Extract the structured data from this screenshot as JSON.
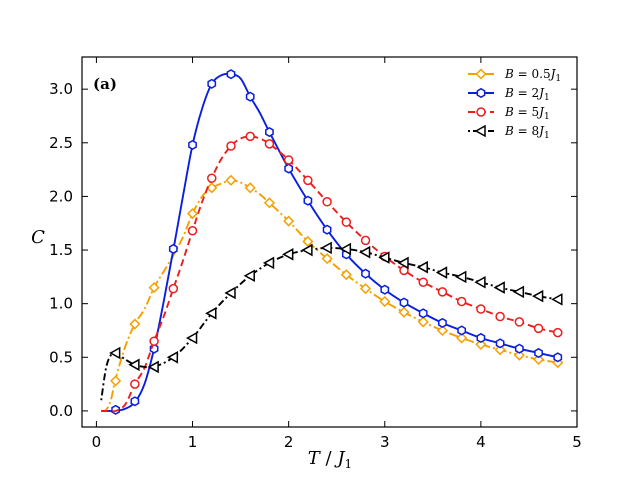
{
  "chart_data": {
    "type": "line",
    "panel_label": "(a)",
    "xlabel_main": "T",
    "xlabel_sep": " / ",
    "xlabel_sym": "J",
    "xlabel_sub": "1",
    "ylabel": "C",
    "xlim": [
      -0.15,
      5.0
    ],
    "ylim": [
      -0.15,
      3.3
    ],
    "xticks": [
      0,
      1,
      2,
      3,
      4,
      5
    ],
    "yticks": [
      0.0,
      0.5,
      1.0,
      1.5,
      2.0,
      2.5,
      3.0
    ],
    "xtick_labels": [
      "0",
      "1",
      "2",
      "3",
      "4",
      "5"
    ],
    "ytick_labels": [
      "0.0",
      "0.5",
      "1.0",
      "1.5",
      "2.0",
      "2.5",
      "3.0"
    ],
    "legend_position": "top-right",
    "series": [
      {
        "name": "B = 0.5J1",
        "legend_prefix": "B",
        "legend_eq": " = 0.5",
        "legend_sym": "J",
        "legend_sub": "1",
        "color": "#f5a000",
        "dash": "9,3,2,3",
        "marker": "diamond",
        "curve_x": [
          0.05,
          0.1,
          0.15,
          0.2,
          0.3,
          0.4,
          0.5,
          0.6,
          0.7,
          0.8,
          0.9,
          1.0,
          1.1,
          1.2,
          1.3,
          1.4,
          1.5,
          1.6,
          1.7,
          1.8,
          2.0,
          2.2,
          2.4,
          2.6,
          2.8,
          3.0,
          3.2,
          3.4,
          3.6,
          3.8,
          4.0,
          4.2,
          4.4,
          4.6,
          4.8
        ],
        "curve_y": [
          0.0,
          0.01,
          0.1,
          0.3,
          0.6,
          0.81,
          0.95,
          1.15,
          1.3,
          1.45,
          1.62,
          1.84,
          2.0,
          2.08,
          2.12,
          2.15,
          2.13,
          2.08,
          2.02,
          1.94,
          1.77,
          1.58,
          1.42,
          1.27,
          1.14,
          1.02,
          0.92,
          0.83,
          0.75,
          0.68,
          0.62,
          0.57,
          0.52,
          0.48,
          0.45
        ],
        "marker_x": [
          0.2,
          0.4,
          0.6,
          1.0,
          1.2,
          1.4,
          1.6,
          1.8,
          2.0,
          2.2,
          2.4,
          2.6,
          2.8,
          3.0,
          3.2,
          3.4,
          3.6,
          3.8,
          4.0,
          4.2,
          4.4,
          4.6,
          4.8
        ],
        "marker_y": [
          0.28,
          0.81,
          1.15,
          1.84,
          2.08,
          2.15,
          2.08,
          1.94,
          1.77,
          1.58,
          1.42,
          1.27,
          1.14,
          1.02,
          0.92,
          0.83,
          0.75,
          0.68,
          0.62,
          0.57,
          0.52,
          0.48,
          0.45
        ]
      },
      {
        "name": "B = 2J1",
        "legend_prefix": "B",
        "legend_eq": " = 2",
        "legend_sym": "J",
        "legend_sub": "1",
        "color": "#0a1ee0",
        "dash": "",
        "marker": "hexagon",
        "curve_x": [
          0.05,
          0.1,
          0.2,
          0.3,
          0.4,
          0.5,
          0.6,
          0.7,
          0.8,
          0.9,
          1.0,
          1.1,
          1.2,
          1.3,
          1.4,
          1.5,
          1.6,
          1.7,
          1.8,
          2.0,
          2.2,
          2.4,
          2.6,
          2.8,
          3.0,
          3.2,
          3.4,
          3.6,
          3.8,
          4.0,
          4.2,
          4.4,
          4.6,
          4.8
        ],
        "curve_y": [
          0.0,
          0.0,
          0.0,
          0.02,
          0.08,
          0.25,
          0.58,
          1.02,
          1.5,
          2.0,
          2.48,
          2.82,
          3.05,
          3.13,
          3.14,
          3.1,
          2.93,
          2.78,
          2.6,
          2.26,
          1.96,
          1.69,
          1.46,
          1.28,
          1.13,
          1.01,
          0.91,
          0.82,
          0.75,
          0.68,
          0.63,
          0.58,
          0.54,
          0.5
        ],
        "marker_x": [
          0.2,
          0.4,
          0.6,
          0.8,
          1.0,
          1.2,
          1.4,
          1.6,
          1.8,
          2.0,
          2.2,
          2.4,
          2.6,
          2.8,
          3.0,
          3.2,
          3.4,
          3.6,
          3.8,
          4.0,
          4.2,
          4.4,
          4.6,
          4.8
        ],
        "marker_y": [
          0.01,
          0.09,
          0.58,
          1.51,
          2.48,
          3.05,
          3.14,
          2.93,
          2.6,
          2.26,
          1.96,
          1.69,
          1.46,
          1.28,
          1.13,
          1.01,
          0.91,
          0.82,
          0.75,
          0.68,
          0.63,
          0.58,
          0.54,
          0.5
        ]
      },
      {
        "name": "B = 5J1",
        "legend_prefix": "B",
        "legend_eq": " = 5",
        "legend_sym": "J",
        "legend_sub": "1",
        "color": "#ee1c1c",
        "dash": "7,4",
        "marker": "circle",
        "curve_x": [
          0.05,
          0.1,
          0.2,
          0.3,
          0.4,
          0.5,
          0.6,
          0.7,
          0.8,
          0.9,
          1.0,
          1.1,
          1.2,
          1.3,
          1.4,
          1.5,
          1.6,
          1.7,
          1.8,
          2.0,
          2.2,
          2.4,
          2.6,
          2.8,
          3.0,
          3.2,
          3.4,
          3.6,
          3.8,
          4.0,
          4.2,
          4.4,
          4.6,
          4.8
        ],
        "curve_y": [
          0.0,
          0.0,
          0.0,
          0.06,
          0.25,
          0.4,
          0.65,
          0.88,
          1.14,
          1.4,
          1.68,
          1.95,
          2.17,
          2.35,
          2.47,
          2.54,
          2.56,
          2.54,
          2.49,
          2.34,
          2.15,
          1.95,
          1.76,
          1.59,
          1.44,
          1.31,
          1.2,
          1.11,
          1.02,
          0.95,
          0.88,
          0.83,
          0.77,
          0.73
        ],
        "marker_x": [
          0.4,
          0.6,
          0.8,
          1.0,
          1.2,
          1.4,
          1.6,
          1.8,
          2.0,
          2.2,
          2.4,
          2.6,
          2.8,
          3.0,
          3.2,
          3.4,
          3.6,
          3.8,
          4.0,
          4.2,
          4.4,
          4.6,
          4.8
        ],
        "marker_y": [
          0.25,
          0.65,
          1.14,
          1.68,
          2.17,
          2.47,
          2.56,
          2.49,
          2.34,
          2.15,
          1.95,
          1.76,
          1.59,
          1.44,
          1.31,
          1.2,
          1.11,
          1.02,
          0.95,
          0.88,
          0.83,
          0.77,
          0.73
        ]
      },
      {
        "name": "B = 8J1",
        "legend_prefix": "B",
        "legend_eq": " = 8",
        "legend_sym": "J",
        "legend_sub": "1",
        "color": "#000000",
        "dash": "2,3,7,3",
        "marker": "triangle-left",
        "curve_x": [
          0.05,
          0.1,
          0.15,
          0.2,
          0.3,
          0.4,
          0.5,
          0.6,
          0.8,
          1.0,
          1.2,
          1.4,
          1.6,
          1.8,
          2.0,
          2.2,
          2.4,
          2.6,
          2.8,
          3.0,
          3.2,
          3.4,
          3.6,
          3.8,
          4.0,
          4.2,
          4.4,
          4.6,
          4.8
        ],
        "curve_y": [
          0.1,
          0.4,
          0.52,
          0.54,
          0.48,
          0.43,
          0.41,
          0.41,
          0.5,
          0.68,
          0.91,
          1.1,
          1.26,
          1.38,
          1.46,
          1.5,
          1.52,
          1.51,
          1.48,
          1.43,
          1.38,
          1.34,
          1.29,
          1.25,
          1.2,
          1.15,
          1.11,
          1.07,
          1.04
        ],
        "marker_x": [
          0.2,
          0.4,
          0.6,
          0.8,
          1.0,
          1.2,
          1.4,
          1.6,
          1.8,
          2.0,
          2.2,
          2.4,
          2.6,
          2.8,
          3.0,
          3.2,
          3.4,
          3.6,
          3.8,
          4.0,
          4.2,
          4.4,
          4.6,
          4.8
        ],
        "marker_y": [
          0.54,
          0.43,
          0.41,
          0.5,
          0.68,
          0.91,
          1.1,
          1.26,
          1.38,
          1.46,
          1.5,
          1.52,
          1.51,
          1.48,
          1.43,
          1.38,
          1.34,
          1.29,
          1.25,
          1.2,
          1.15,
          1.11,
          1.07,
          1.04
        ]
      }
    ]
  }
}
